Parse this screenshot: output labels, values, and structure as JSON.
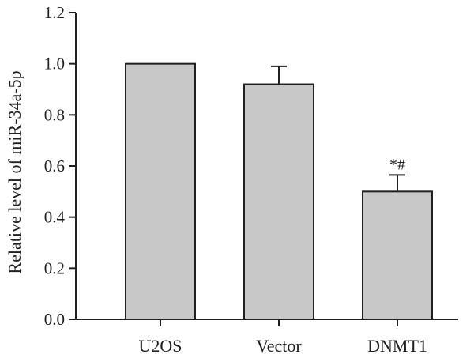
{
  "chart_data": {
    "type": "bar",
    "categories": [
      "U2OS",
      "Vector",
      "DNMT1"
    ],
    "values": [
      1.0,
      0.92,
      0.5
    ],
    "errors": [
      0.0,
      0.07,
      0.065
    ],
    "annotations": [
      "",
      "",
      "*#"
    ],
    "ylabel": "Relative level of miR-34a-5p",
    "xlabel": "",
    "ylim": [
      0,
      1.2
    ],
    "yticks": [
      "0.0",
      "0.2",
      "0.4",
      "0.6",
      "0.8",
      "1.0",
      "1.2"
    ],
    "bar_color": "#c8c8c8",
    "edge_color": "#231f20",
    "grid": false,
    "legend": "none"
  }
}
